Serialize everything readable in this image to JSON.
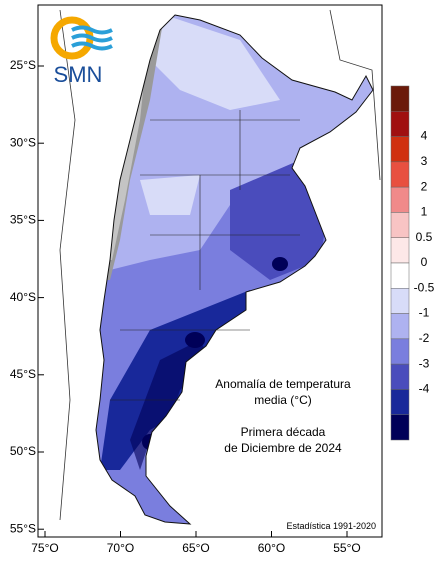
{
  "logo": "SMN",
  "annotation": {
    "lines": [
      "Anomalía de temperatura",
      "media (°C)",
      "Primera década",
      "de Diciembre de 2024"
    ]
  },
  "source": "Estadística 1991-2020",
  "lat_ticks": [
    "25°S",
    "30°S",
    "35°S",
    "40°S",
    "45°S",
    "50°S",
    "55°S"
  ],
  "lon_ticks": [
    "75°O",
    "70°O",
    "65°O",
    "60°O",
    "55°O"
  ],
  "colorbar": {
    "labels": [
      "4",
      "3",
      "2",
      "1",
      "0.5",
      "0",
      "-0.5",
      "-1",
      "-2",
      "-3",
      "-4"
    ],
    "colors": [
      "#6b1a0a",
      "#a01010",
      "#d03010",
      "#e85040",
      "#f08a8a",
      "#f8c4c4",
      "#fde8e8",
      "#ffffff",
      "#d8dcf8",
      "#aeb2f0",
      "#7a7ede",
      "#4a4cbc",
      "#18289a",
      "#000058"
    ]
  }
}
